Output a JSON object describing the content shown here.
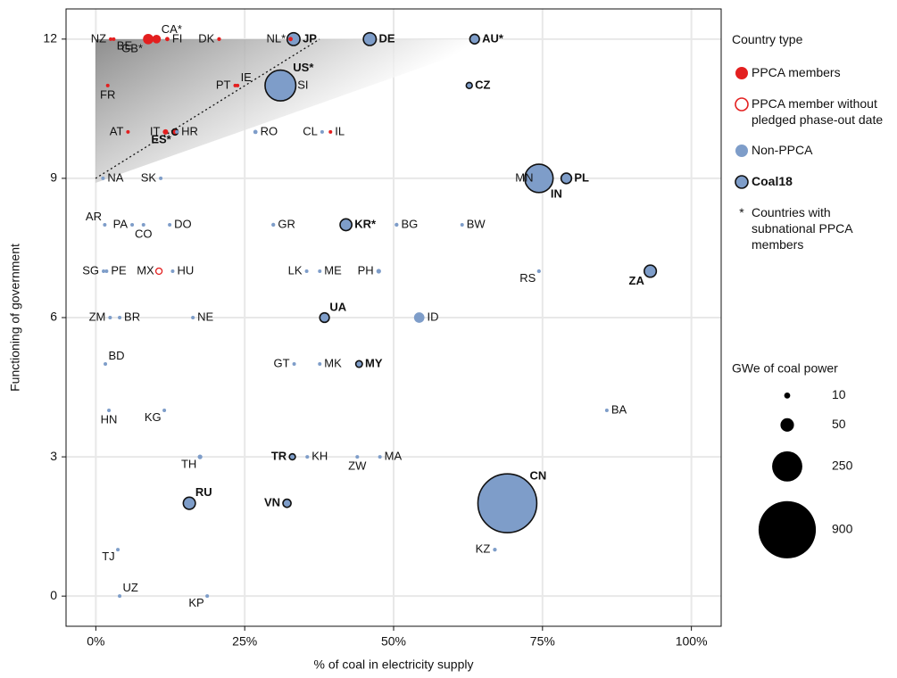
{
  "chart_data": {
    "type": "scatter",
    "x_label": "% of coal in electricity supply",
    "y_label": "Functioning of government",
    "xlim": [
      -5,
      105
    ],
    "ylim": [
      -0.65,
      12.65
    ],
    "xticks": [
      {
        "value": 0,
        "label": "0%"
      },
      {
        "value": 25,
        "label": "25%"
      },
      {
        "value": 50,
        "label": "50%"
      },
      {
        "value": 75,
        "label": "75%"
      },
      {
        "value": 100,
        "label": "100%"
      }
    ],
    "yticks": [
      0,
      3,
      6,
      9,
      12
    ],
    "grid": true,
    "labels": [
      "NZ",
      "BE",
      "GB*",
      "CA*",
      "FI",
      "DK",
      "NL*",
      "JP",
      "DE",
      "AU*",
      "FR",
      "PT",
      "IE",
      "US*",
      "SI",
      "CZ",
      "AT",
      "IT",
      "ES*",
      "HR",
      "RO",
      "CL",
      "IL",
      "NA",
      "SK",
      "MN",
      "IN",
      "PL",
      "AR",
      "PA",
      "CO",
      "DO",
      "GR",
      "KR*",
      "BG",
      "BW",
      "SG",
      "PE",
      "MX",
      "HU",
      "LK",
      "ME",
      "PH",
      "RS",
      "ZA",
      "ZM",
      "BR",
      "NE",
      "UA",
      "ID",
      "BD",
      "GT",
      "MK",
      "MY",
      "HN",
      "KG",
      "BA",
      "TH",
      "TR",
      "KH",
      "ZW",
      "MA",
      "RU",
      "VN",
      "CN",
      "TJ",
      "KZ",
      "UZ",
      "KP"
    ],
    "x": [
      2.5,
      3,
      8.8,
      10.2,
      12,
      20.7,
      32.7,
      33.2,
      46,
      63.6,
      2,
      23.4,
      23.8,
      31,
      33.1,
      62.7,
      5.4,
      11.7,
      13.3,
      13.6,
      26.8,
      38,
      39.4,
      1.2,
      10.9,
      74.2,
      74.4,
      79,
      1.5,
      6.1,
      8,
      12.4,
      29.8,
      42,
      50.5,
      61.5,
      1.3,
      1.8,
      10.6,
      12.9,
      35.4,
      37.6,
      47.5,
      74.4,
      93.1,
      2.4,
      4,
      16.3,
      38.4,
      54.3,
      1.6,
      33.3,
      37.6,
      44.2,
      2.2,
      11.5,
      85.8,
      17.5,
      33,
      35.5,
      43.9,
      47.7,
      15.7,
      32.1,
      69.1,
      3.7,
      67,
      4,
      18.7
    ],
    "values": [
      12,
      12,
      12,
      12,
      12,
      12,
      12,
      12,
      12,
      12,
      11,
      11,
      11,
      11,
      11,
      11,
      10,
      10,
      10,
      10,
      10,
      10,
      10,
      9,
      9,
      9,
      9,
      9,
      8,
      8,
      8,
      8,
      8,
      8,
      8,
      8,
      7,
      7,
      7,
      7,
      7,
      7,
      7,
      7,
      7,
      6,
      6,
      6,
      6,
      6,
      5,
      5,
      5,
      5,
      4,
      4,
      4,
      3,
      3,
      3,
      3,
      3,
      2,
      2,
      2,
      1,
      1,
      0,
      0
    ],
    "sizes": [
      1,
      1,
      30,
      20,
      5,
      4,
      5,
      45,
      45,
      25,
      3,
      2,
      1,
      260,
      1,
      10,
      1,
      8,
      10,
      1,
      5,
      3,
      3,
      0.5,
      2,
      1,
      220,
      30,
      0.5,
      0.5,
      1,
      0.5,
      4,
      38,
      4,
      0.5,
      0.5,
      0.5,
      5,
      1,
      0.5,
      0.5,
      6,
      4,
      40,
      0.3,
      2,
      0.1,
      25,
      30,
      0.5,
      0.5,
      1,
      12,
      0.2,
      1,
      2,
      6,
      10,
      0.5,
      1,
      3,
      40,
      18,
      950,
      0.1,
      4,
      1,
      2
    ],
    "group": [
      0,
      0,
      0,
      0,
      0,
      0,
      0,
      2,
      2,
      2,
      0,
      0,
      0,
      2,
      2,
      2,
      0,
      0,
      0,
      2,
      2,
      2,
      0,
      2,
      2,
      2,
      2,
      2,
      2,
      2,
      2,
      2,
      2,
      2,
      2,
      2,
      2,
      2,
      1,
      2,
      2,
      2,
      2,
      2,
      2,
      2,
      2,
      2,
      2,
      2,
      2,
      2,
      2,
      2,
      2,
      2,
      2,
      2,
      2,
      2,
      2,
      2,
      2,
      2,
      2,
      2,
      2,
      2,
      2
    ],
    "coal18": [
      false,
      false,
      false,
      false,
      false,
      false,
      false,
      true,
      true,
      true,
      false,
      false,
      false,
      true,
      false,
      true,
      false,
      false,
      true,
      false,
      false,
      false,
      false,
      false,
      false,
      false,
      true,
      true,
      false,
      false,
      false,
      false,
      false,
      true,
      false,
      false,
      false,
      false,
      false,
      false,
      false,
      false,
      false,
      false,
      true,
      false,
      false,
      false,
      true,
      false,
      false,
      false,
      false,
      true,
      false,
      false,
      false,
      false,
      true,
      false,
      false,
      false,
      true,
      true,
      true,
      false,
      false,
      false,
      false
    ],
    "legend": {
      "title": "Country type",
      "items": [
        {
          "label": "PPCA members",
          "color": "#e31f1f",
          "style": "filled"
        },
        {
          "label": "PPCA member without pledged phase-out date",
          "color": "#e31f1f",
          "style": "open"
        },
        {
          "label": "Non-PPCA",
          "color": "#7e9dc9",
          "style": "filled"
        },
        {
          "label": "Coal18",
          "color": "#7e9dc9",
          "style": "outlined"
        },
        {
          "symbol": "*",
          "label": "Countries with subnational PPCA members"
        }
      ]
    },
    "size_legend": {
      "title": "GWe of coal power",
      "values": [
        10,
        50,
        250,
        900
      ]
    }
  }
}
